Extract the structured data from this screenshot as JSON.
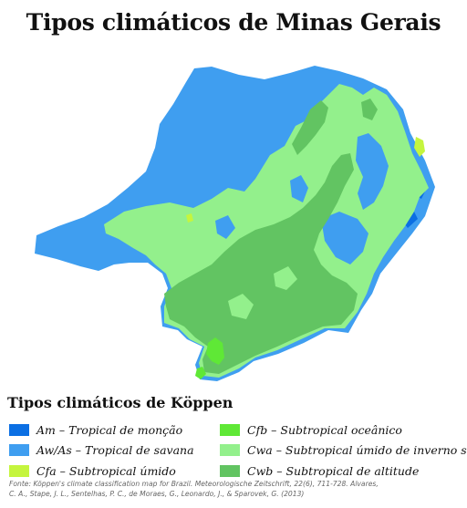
{
  "title": "Tipos climáticos de Minas Gerais",
  "legend": {
    "title": "Tipos climáticos de Köppen",
    "items": [
      {
        "code": "Am",
        "text": "Am – Tropical de monção",
        "color": "#0b6fe3"
      },
      {
        "code": "Aw/As",
        "text": "Aw/As – Tropical de savana",
        "color": "#3f9ef0"
      },
      {
        "code": "Cfa",
        "text": "Cfa – Subtropical úmido",
        "color": "#c5f53e"
      },
      {
        "code": "Cfb",
        "text": "Cfb – Subtropical oceânico",
        "color": "#5fe836"
      },
      {
        "code": "Cwa",
        "text": "Cwa – Subtropical úmido de inverno seco",
        "color": "#93f08c"
      },
      {
        "code": "Cwb",
        "text": "Cwb – Subtropical de altitude",
        "color": "#62c462"
      }
    ]
  },
  "source": {
    "line1": "Fonte: Köppen's climate classification map for Brazil. Meteorologische Zeitschrift, 22(6), 711-728. Alvares,",
    "line2": "C. A., Stape, J. L., Sentelhas, P. C., de Moraes, G., Leonardo, J., & Sparovek, G. (2013)"
  },
  "colors": {
    "am": "#0b6fe3",
    "aw": "#3f9ef0",
    "cfa": "#c5f53e",
    "cfb": "#5fe836",
    "cwa": "#93f08c",
    "cwb": "#62c462"
  }
}
